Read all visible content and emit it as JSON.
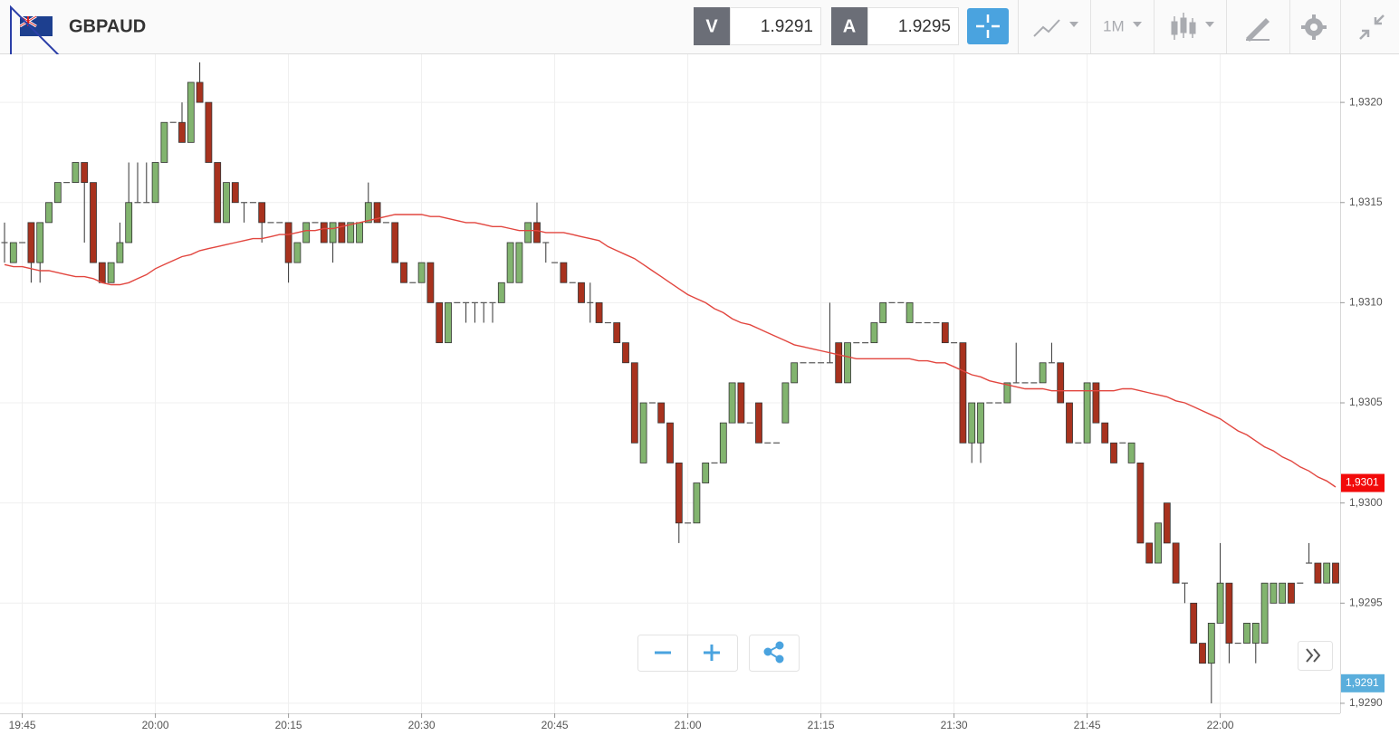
{
  "header": {
    "symbol": "GBPAUD",
    "bid_label": "V",
    "bid": "1.9291",
    "ask_label": "A",
    "ask": "1.9295",
    "timeframe": "1M"
  },
  "chart_data": {
    "type": "candlestick",
    "grid": true,
    "up_color": "#82b46f",
    "down_color": "#a8321e",
    "categories": [
      null,
      null,
      "19:45",
      null,
      null,
      null,
      null,
      null,
      null,
      null,
      null,
      null,
      null,
      null,
      null,
      null,
      null,
      "20:00",
      null,
      null,
      null,
      null,
      null,
      null,
      null,
      null,
      null,
      null,
      null,
      null,
      null,
      null,
      "20:15",
      null,
      null,
      null,
      null,
      null,
      null,
      null,
      null,
      null,
      null,
      null,
      null,
      null,
      null,
      "20:30",
      null,
      null,
      null,
      null,
      null,
      null,
      null,
      null,
      null,
      null,
      null,
      null,
      null,
      null,
      "20:45",
      null,
      null,
      null,
      null,
      null,
      null,
      null,
      null,
      null,
      null,
      null,
      null,
      null,
      null,
      "21:00",
      null,
      null,
      null,
      null,
      null,
      null,
      null,
      null,
      null,
      null,
      null,
      null,
      null,
      null,
      "21:15",
      null,
      null,
      null,
      null,
      null,
      null,
      null,
      null,
      null,
      null,
      null,
      null,
      null,
      null,
      "21:30",
      null,
      null,
      null,
      null,
      null,
      null,
      null,
      null,
      null,
      null,
      null,
      null,
      null,
      null,
      "21:45",
      null,
      null,
      null,
      null,
      null,
      null,
      null,
      null,
      null,
      null,
      null,
      null,
      null,
      null,
      "22:00",
      null,
      null,
      null,
      null,
      null,
      null,
      null,
      null,
      null,
      null,
      null,
      null,
      null
    ],
    "open": [
      1.9313,
      1.9312,
      1.9313,
      1.9314,
      1.9312,
      1.9314,
      1.9315,
      1.9316,
      1.9316,
      1.9317,
      1.9316,
      1.9312,
      1.9311,
      1.9312,
      1.9313,
      1.9315,
      1.9315,
      1.9315,
      1.9317,
      1.9319,
      1.9319,
      1.9318,
      1.9321,
      1.932,
      1.9317,
      1.9314,
      1.9316,
      1.9315,
      1.9315,
      1.9315,
      1.9314,
      1.9314,
      1.9314,
      1.9312,
      1.9313,
      1.9314,
      1.9314,
      1.9313,
      1.9314,
      1.9313,
      1.9313,
      1.9314,
      1.9315,
      1.9314,
      1.9314,
      1.9312,
      1.9311,
      1.9311,
      1.9312,
      1.931,
      1.9308,
      1.931,
      1.931,
      1.931,
      1.931,
      1.931,
      1.931,
      1.9311,
      1.9311,
      1.9313,
      1.9314,
      1.9313,
      1.9312,
      1.9312,
      1.9311,
      1.9311,
      1.931,
      1.931,
      1.9309,
      1.9309,
      1.9308,
      1.9307,
      1.9302,
      1.9305,
      1.9305,
      1.9304,
      1.9302,
      1.9299,
      1.9299,
      1.9301,
      1.9302,
      1.9302,
      1.9304,
      1.9306,
      1.9304,
      1.9305,
      1.9303,
      1.9303,
      1.9304,
      1.9306,
      1.9307,
      1.9307,
      1.9307,
      1.9307,
      1.9308,
      1.9306,
      1.9308,
      1.9308,
      1.9308,
      1.9309,
      1.931,
      1.931,
      1.9309,
      1.9309,
      1.9309,
      1.9309,
      1.9309,
      1.9308,
      1.9308,
      1.9303,
      1.9303,
      1.9305,
      1.9305,
      1.9305,
      1.9306,
      1.9306,
      1.9306,
      1.9306,
      1.9307,
      1.9307,
      1.9305,
      1.9303,
      1.9303,
      1.9306,
      1.9304,
      1.9303,
      1.9303,
      1.9302,
      1.9302,
      1.9298,
      1.9297,
      1.93,
      1.9298,
      1.9296,
      1.9295,
      1.9293,
      1.9292,
      1.9294,
      1.9296,
      1.9293,
      1.9293,
      1.9293,
      1.9293,
      1.9295,
      1.9295,
      1.9296,
      1.9296,
      1.9297,
      1.9297,
      1.9296,
      1.9297
    ],
    "high": [
      1.9314,
      1.9313,
      1.9313,
      1.9314,
      1.9314,
      1.9315,
      1.9316,
      1.9316,
      1.9317,
      1.9317,
      1.9316,
      1.9312,
      1.9312,
      1.9314,
      1.9317,
      1.9317,
      1.9317,
      1.9317,
      1.9319,
      1.9319,
      1.932,
      1.9321,
      1.9322,
      1.932,
      1.9317,
      1.9316,
      1.9316,
      1.9315,
      1.9315,
      1.9315,
      1.9314,
      1.9314,
      1.9314,
      1.9313,
      1.9314,
      1.9314,
      1.9314,
      1.9314,
      1.9314,
      1.9314,
      1.9314,
      1.9316,
      1.9315,
      1.9314,
      1.9314,
      1.9312,
      1.9311,
      1.9312,
      1.9312,
      1.931,
      1.931,
      1.931,
      1.931,
      1.931,
      1.931,
      1.931,
      1.9311,
      1.9313,
      1.9313,
      1.9314,
      1.9315,
      1.9313,
      1.9312,
      1.9312,
      1.9311,
      1.9311,
      1.9311,
      1.931,
      1.9309,
      1.9309,
      1.9308,
      1.9307,
      1.9305,
      1.9305,
      1.9305,
      1.9304,
      1.9302,
      1.9299,
      1.9301,
      1.9302,
      1.9302,
      1.9304,
      1.9306,
      1.9306,
      1.9304,
      1.9305,
      1.9303,
      1.9303,
      1.9306,
      1.9307,
      1.9307,
      1.9307,
      1.9307,
      1.931,
      1.9308,
      1.9308,
      1.9308,
      1.9308,
      1.9309,
      1.931,
      1.931,
      1.931,
      1.931,
      1.9309,
      1.9309,
      1.9309,
      1.9309,
      1.9308,
      1.9308,
      1.9305,
      1.9305,
      1.9305,
      1.9305,
      1.9306,
      1.9308,
      1.9306,
      1.9306,
      1.9307,
      1.9308,
      1.9307,
      1.9305,
      1.9303,
      1.9306,
      1.9306,
      1.9304,
      1.9303,
      1.9303,
      1.9303,
      1.9302,
      1.9298,
      1.9299,
      1.93,
      1.9298,
      1.9296,
      1.9295,
      1.9293,
      1.9294,
      1.9298,
      1.9296,
      1.9293,
      1.9294,
      1.9294,
      1.9296,
      1.9296,
      1.9296,
      1.9296,
      1.9296,
      1.9298,
      1.9297,
      1.9297,
      1.9297
    ],
    "low": [
      1.9312,
      1.9312,
      1.9313,
      1.9311,
      1.9311,
      1.9314,
      1.9315,
      1.9316,
      1.9316,
      1.9313,
      1.9312,
      1.9311,
      1.9311,
      1.9312,
      1.9313,
      1.9315,
      1.9315,
      1.9315,
      1.9317,
      1.9319,
      1.9318,
      1.9318,
      1.932,
      1.9317,
      1.9314,
      1.9314,
      1.9315,
      1.9314,
      1.9315,
      1.9313,
      1.9314,
      1.9314,
      1.9311,
      1.9312,
      1.9313,
      1.9314,
      1.9313,
      1.9312,
      1.9313,
      1.9313,
      1.9313,
      1.9314,
      1.9314,
      1.9314,
      1.9312,
      1.9311,
      1.9311,
      1.9311,
      1.931,
      1.9308,
      1.9308,
      1.931,
      1.9309,
      1.9309,
      1.9309,
      1.9309,
      1.931,
      1.9311,
      1.9311,
      1.9313,
      1.9313,
      1.9312,
      1.9312,
      1.9311,
      1.9311,
      1.931,
      1.9309,
      1.9309,
      1.9309,
      1.9308,
      1.9307,
      1.9303,
      1.9302,
      1.9305,
      1.9304,
      1.9302,
      1.9298,
      1.9299,
      1.9299,
      1.9301,
      1.9302,
      1.9302,
      1.9304,
      1.9304,
      1.9304,
      1.9303,
      1.9303,
      1.9303,
      1.9304,
      1.9306,
      1.9307,
      1.9307,
      1.9307,
      1.9307,
      1.9306,
      1.9306,
      1.9308,
      1.9308,
      1.9308,
      1.9309,
      1.931,
      1.931,
      1.9309,
      1.9309,
      1.9309,
      1.9309,
      1.9308,
      1.9308,
      1.9303,
      1.9302,
      1.9302,
      1.9305,
      1.9305,
      1.9305,
      1.9306,
      1.9306,
      1.9306,
      1.9306,
      1.9307,
      1.9305,
      1.9303,
      1.9303,
      1.9303,
      1.9304,
      1.9303,
      1.9302,
      1.9303,
      1.9302,
      1.9298,
      1.9297,
      1.9297,
      1.9298,
      1.9296,
      1.9295,
      1.9293,
      1.9292,
      1.929,
      1.9294,
      1.9292,
      1.9293,
      1.9293,
      1.9292,
      1.9293,
      1.9295,
      1.9295,
      1.9295,
      1.9296,
      1.9297,
      1.9296,
      1.9296,
      1.9296
    ],
    "close": [
      1.9313,
      1.9313,
      1.9313,
      1.9312,
      1.9314,
      1.9315,
      1.9316,
      1.9316,
      1.9317,
      1.9316,
      1.9312,
      1.9311,
      1.9312,
      1.9313,
      1.9315,
      1.9315,
      1.9315,
      1.9317,
      1.9319,
      1.9319,
      1.9318,
      1.9321,
      1.932,
      1.9317,
      1.9314,
      1.9316,
      1.9315,
      1.9315,
      1.9315,
      1.9314,
      1.9314,
      1.9314,
      1.9312,
      1.9313,
      1.9314,
      1.9314,
      1.9313,
      1.9314,
      1.9313,
      1.9314,
      1.9314,
      1.9315,
      1.9314,
      1.9314,
      1.9312,
      1.9311,
      1.9311,
      1.9312,
      1.931,
      1.9308,
      1.931,
      1.931,
      1.931,
      1.931,
      1.931,
      1.931,
      1.9311,
      1.9313,
      1.9313,
      1.9314,
      1.9313,
      1.9313,
      1.9312,
      1.9311,
      1.9311,
      1.931,
      1.931,
      1.9309,
      1.9309,
      1.9308,
      1.9307,
      1.9303,
      1.9305,
      1.9305,
      1.9304,
      1.9302,
      1.9299,
      1.9299,
      1.9301,
      1.9302,
      1.9302,
      1.9304,
      1.9306,
      1.9304,
      1.9304,
      1.9303,
      1.9303,
      1.9303,
      1.9306,
      1.9307,
      1.9307,
      1.9307,
      1.9307,
      1.9307,
      1.9306,
      1.9308,
      1.9308,
      1.9308,
      1.9309,
      1.931,
      1.931,
      1.931,
      1.931,
      1.9309,
      1.9309,
      1.9309,
      1.9308,
      1.9308,
      1.9303,
      1.9305,
      1.9305,
      1.9305,
      1.9305,
      1.9306,
      1.9306,
      1.9306,
      1.9306,
      1.9307,
      1.9307,
      1.9305,
      1.9303,
      1.9303,
      1.9306,
      1.9304,
      1.9303,
      1.9302,
      1.9303,
      1.9303,
      1.9298,
      1.9297,
      1.9299,
      1.9298,
      1.9296,
      1.9296,
      1.9293,
      1.9292,
      1.9294,
      1.9296,
      1.9293,
      1.9293,
      1.9294,
      1.9294,
      1.9296,
      1.9296,
      1.9296,
      1.9295,
      1.9296,
      1.9297,
      1.9296,
      1.9297,
      1.9296
    ],
    "line": {
      "color": "#e2463f",
      "values": [
        1.93119,
        1.93118,
        1.93118,
        1.93117,
        1.93116,
        1.93116,
        1.93115,
        1.93114,
        1.93113,
        1.93113,
        1.93112,
        1.9311,
        1.93109,
        1.93109,
        1.9311,
        1.93112,
        1.93114,
        1.93117,
        1.93119,
        1.93121,
        1.93123,
        1.93124,
        1.93126,
        1.93127,
        1.93128,
        1.93129,
        1.9313,
        1.93131,
        1.93132,
        1.93132,
        1.93133,
        1.93134,
        1.93134,
        1.93135,
        1.93136,
        1.93136,
        1.93137,
        1.93137,
        1.93138,
        1.93139,
        1.9314,
        1.93141,
        1.93142,
        1.93143,
        1.93144,
        1.93144,
        1.93144,
        1.93144,
        1.93143,
        1.93143,
        1.93142,
        1.93141,
        1.9314,
        1.9314,
        1.93139,
        1.93138,
        1.93138,
        1.93137,
        1.93136,
        1.93136,
        1.93136,
        1.93135,
        1.93135,
        1.93135,
        1.93134,
        1.93133,
        1.93132,
        1.93131,
        1.93128,
        1.93126,
        1.93124,
        1.93122,
        1.93119,
        1.93116,
        1.93113,
        1.9311,
        1.93107,
        1.93104,
        1.93102,
        1.931,
        1.93097,
        1.93095,
        1.93092,
        1.9309,
        1.93089,
        1.93087,
        1.93085,
        1.93083,
        1.93081,
        1.93079,
        1.93078,
        1.93077,
        1.93076,
        1.93075,
        1.93074,
        1.93073,
        1.93072,
        1.93072,
        1.93072,
        1.93072,
        1.93072,
        1.93072,
        1.93072,
        1.93071,
        1.93071,
        1.9307,
        1.9307,
        1.93068,
        1.93066,
        1.93064,
        1.93063,
        1.93061,
        1.9306,
        1.93059,
        1.93058,
        1.93057,
        1.93057,
        1.93057,
        1.93056,
        1.93056,
        1.93056,
        1.93056,
        1.93056,
        1.93056,
        1.93056,
        1.93056,
        1.93057,
        1.93057,
        1.93056,
        1.93055,
        1.93054,
        1.93053,
        1.93051,
        1.9305,
        1.93048,
        1.93046,
        1.93044,
        1.93042,
        1.93039,
        1.93036,
        1.93034,
        1.93031,
        1.93028,
        1.93026,
        1.93023,
        1.93021,
        1.93018,
        1.93016,
        1.93013,
        1.93011,
        1.93008
      ]
    },
    "ylim": [
      1.92895,
      1.93224
    ],
    "yticks": [
      {
        "value": 1.929,
        "label": "1,9290"
      },
      {
        "value": 1.9295,
        "label": "1,9295"
      },
      {
        "value": 1.93,
        "label": "1,9300"
      },
      {
        "value": 1.9305,
        "label": "1,9305"
      },
      {
        "value": 1.931,
        "label": "1,9310"
      },
      {
        "value": 1.9315,
        "label": "1,9315"
      },
      {
        "value": 1.932,
        "label": "1,9320"
      }
    ],
    "price_tags": [
      {
        "value": 1.9301,
        "label": "1,9301",
        "color": "#f20a0a"
      },
      {
        "value": 1.9291,
        "label": "1,9291",
        "color": "#5aaedc"
      }
    ]
  }
}
